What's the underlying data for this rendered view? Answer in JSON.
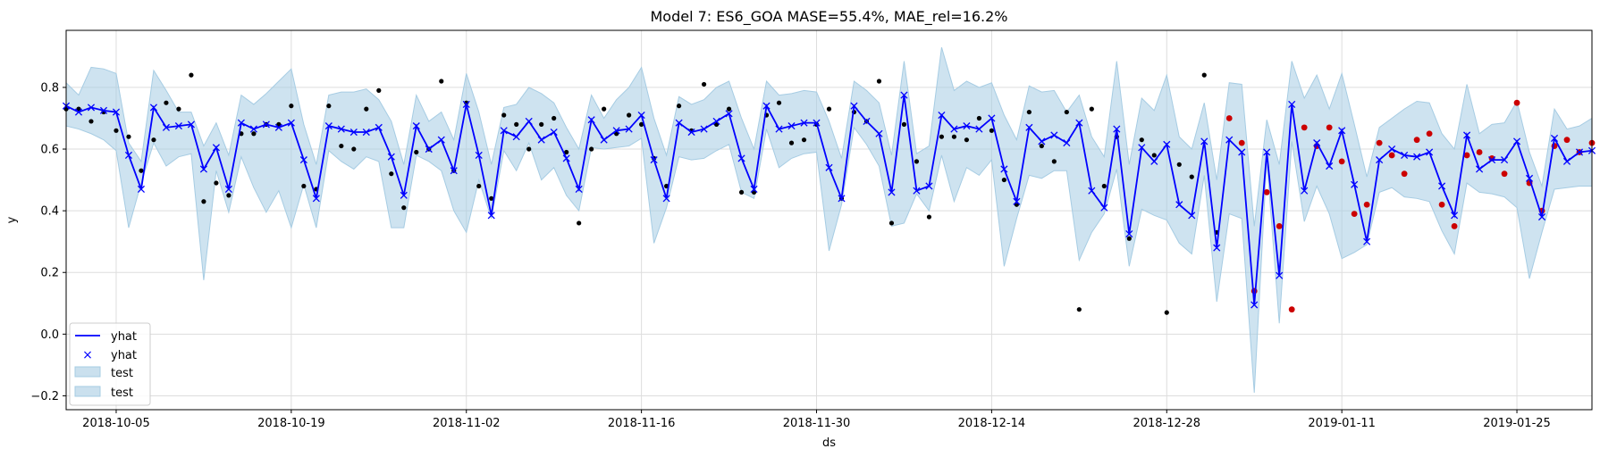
{
  "chart_data": {
    "type": "line",
    "title": "Model 7: ES6_GOA MASE=55.4%, MAE_rel=16.2%",
    "xlabel": "ds",
    "ylabel": "y",
    "x_start": "2018-10-01",
    "x_ticks": [
      "2018-10-05",
      "2018-10-19",
      "2018-11-02",
      "2018-11-16",
      "2018-11-30",
      "2018-12-14",
      "2018-12-28",
      "2019-01-11",
      "2019-01-25"
    ],
    "y_ticks": [
      "−0.2",
      "0.0",
      "0.2",
      "0.4",
      "0.6",
      "0.8"
    ],
    "xlim": [
      "2018-10-01",
      "2019-01-31"
    ],
    "ylim": [
      -0.245,
      0.985
    ],
    "grid": true,
    "legend_position": "lower-left",
    "legend": [
      "yhat",
      "yhat",
      "test",
      "test"
    ],
    "colors": {
      "yhat": "#0000ff",
      "band": "#a6cce3",
      "actual": "#000000",
      "test_actual": "#cc0000"
    },
    "yhat": [
      0.74,
      0.72,
      0.735,
      0.725,
      0.72,
      0.58,
      0.47,
      0.735,
      0.67,
      0.675,
      0.68,
      0.535,
      0.605,
      0.47,
      0.685,
      0.665,
      0.68,
      0.67,
      0.685,
      0.565,
      0.44,
      0.675,
      0.665,
      0.655,
      0.655,
      0.67,
      0.575,
      0.45,
      0.675,
      0.6,
      0.63,
      0.53,
      0.745,
      0.58,
      0.385,
      0.66,
      0.64,
      0.69,
      0.63,
      0.655,
      0.57,
      0.47,
      0.695,
      0.63,
      0.66,
      0.665,
      0.71,
      0.565,
      0.44,
      0.685,
      0.655,
      0.665,
      0.69,
      0.715,
      0.57,
      0.47,
      0.74,
      0.665,
      0.675,
      0.685,
      0.685,
      0.54,
      0.44,
      0.74,
      0.69,
      0.65,
      0.46,
      0.775,
      0.465,
      0.48,
      0.71,
      0.665,
      0.675,
      0.665,
      0.7,
      0.535,
      0.43,
      0.67,
      0.625,
      0.645,
      0.62,
      0.685,
      0.465,
      0.41,
      0.665,
      0.325,
      0.605,
      0.56,
      0.615,
      0.42,
      0.385,
      0.625,
      0.28,
      0.63,
      0.59,
      0.095,
      0.59,
      0.19,
      0.745,
      0.465,
      0.62,
      0.545,
      0.66,
      0.485,
      0.3,
      0.565,
      0.6,
      0.58,
      0.575,
      0.59,
      0.48,
      0.385,
      0.645,
      0.535,
      0.565,
      0.565,
      0.625,
      0.505,
      0.38,
      0.635,
      0.56,
      0.59,
      0.595
    ],
    "upper": [
      0.815,
      0.775,
      0.865,
      0.86,
      0.845,
      0.62,
      0.56,
      0.855,
      0.79,
      0.72,
      0.72,
      0.61,
      0.685,
      0.58,
      0.775,
      0.745,
      0.78,
      0.82,
      0.86,
      0.68,
      0.55,
      0.775,
      0.785,
      0.785,
      0.795,
      0.76,
      0.69,
      0.55,
      0.775,
      0.69,
      0.72,
      0.63,
      0.845,
      0.72,
      0.55,
      0.735,
      0.745,
      0.8,
      0.78,
      0.75,
      0.67,
      0.6,
      0.775,
      0.7,
      0.76,
      0.8,
      0.865,
      0.7,
      0.58,
      0.77,
      0.745,
      0.76,
      0.8,
      0.82,
      0.7,
      0.6,
      0.82,
      0.775,
      0.78,
      0.79,
      0.785,
      0.69,
      0.57,
      0.82,
      0.79,
      0.75,
      0.58,
      0.885,
      0.585,
      0.61,
      0.93,
      0.79,
      0.82,
      0.8,
      0.815,
      0.71,
      0.63,
      0.805,
      0.785,
      0.79,
      0.72,
      0.775,
      0.64,
      0.575,
      0.885,
      0.55,
      0.765,
      0.725,
      0.84,
      0.64,
      0.6,
      0.75,
      0.5,
      0.815,
      0.81,
      0.35,
      0.695,
      0.55,
      0.885,
      0.765,
      0.84,
      0.73,
      0.845,
      0.68,
      0.51,
      0.67,
      0.7,
      0.73,
      0.755,
      0.75,
      0.65,
      0.6,
      0.81,
      0.65,
      0.68,
      0.685,
      0.755,
      0.59,
      0.48,
      0.73,
      0.665,
      0.675,
      0.7
    ],
    "lower": [
      0.675,
      0.665,
      0.65,
      0.63,
      0.595,
      0.345,
      0.49,
      0.62,
      0.545,
      0.575,
      0.585,
      0.175,
      0.53,
      0.395,
      0.575,
      0.475,
      0.395,
      0.465,
      0.345,
      0.485,
      0.345,
      0.595,
      0.56,
      0.535,
      0.575,
      0.56,
      0.345,
      0.345,
      0.58,
      0.56,
      0.53,
      0.4,
      0.33,
      0.5,
      0.375,
      0.595,
      0.53,
      0.62,
      0.5,
      0.54,
      0.45,
      0.4,
      0.605,
      0.6,
      0.605,
      0.61,
      0.635,
      0.295,
      0.41,
      0.575,
      0.565,
      0.57,
      0.595,
      0.615,
      0.46,
      0.44,
      0.665,
      0.54,
      0.57,
      0.585,
      0.59,
      0.27,
      0.42,
      0.67,
      0.615,
      0.545,
      0.35,
      0.36,
      0.455,
      0.4,
      0.58,
      0.43,
      0.54,
      0.515,
      0.565,
      0.22,
      0.375,
      0.515,
      0.505,
      0.53,
      0.53,
      0.24,
      0.33,
      0.39,
      0.535,
      0.22,
      0.405,
      0.385,
      0.37,
      0.295,
      0.26,
      0.515,
      0.105,
      0.39,
      0.375,
      -0.19,
      0.565,
      0.035,
      0.625,
      0.365,
      0.48,
      0.39,
      0.245,
      0.265,
      0.29,
      0.46,
      0.475,
      0.445,
      0.44,
      0.43,
      0.335,
      0.26,
      0.49,
      0.46,
      0.455,
      0.445,
      0.41,
      0.18,
      0.33,
      0.47,
      0.475,
      0.48,
      0.48
    ],
    "actual_test_start": 93,
    "actual": [
      0.73,
      0.73,
      0.69,
      0.72,
      0.66,
      0.64,
      0.53,
      0.63,
      0.75,
      0.73,
      0.84,
      0.43,
      0.49,
      0.45,
      0.65,
      0.65,
      0.68,
      0.68,
      0.74,
      0.48,
      0.47,
      0.74,
      0.61,
      0.6,
      0.73,
      0.79,
      0.52,
      0.41,
      0.59,
      0.6,
      0.82,
      0.53,
      0.75,
      0.48,
      0.44,
      0.71,
      0.68,
      0.6,
      0.68,
      0.7,
      0.59,
      0.36,
      0.6,
      0.73,
      0.65,
      0.71,
      0.68,
      0.57,
      0.48,
      0.74,
      0.66,
      0.81,
      0.68,
      0.73,
      0.46,
      0.46,
      0.71,
      0.75,
      0.62,
      0.63,
      0.68,
      0.73,
      0.44,
      0.72,
      0.69,
      0.82,
      0.36,
      0.68,
      0.56,
      0.38,
      0.64,
      0.64,
      0.63,
      0.7,
      0.66,
      0.5,
      0.42,
      0.72,
      0.61,
      0.56,
      0.72,
      0.08,
      0.73,
      0.48,
      0.64,
      0.31,
      0.63,
      0.58,
      0.07,
      0.55,
      0.51,
      0.84,
      0.33,
      0.7,
      0.62,
      0.14,
      0.46,
      0.35,
      0.08,
      0.67,
      0.61,
      0.67,
      0.56,
      0.39,
      0.42,
      0.62,
      0.58,
      0.52,
      0.63,
      0.65,
      0.42,
      0.35,
      0.58,
      0.59,
      0.57,
      0.52,
      0.75,
      0.49,
      0.4,
      0.61,
      0.63,
      0.59,
      0.62
    ]
  }
}
